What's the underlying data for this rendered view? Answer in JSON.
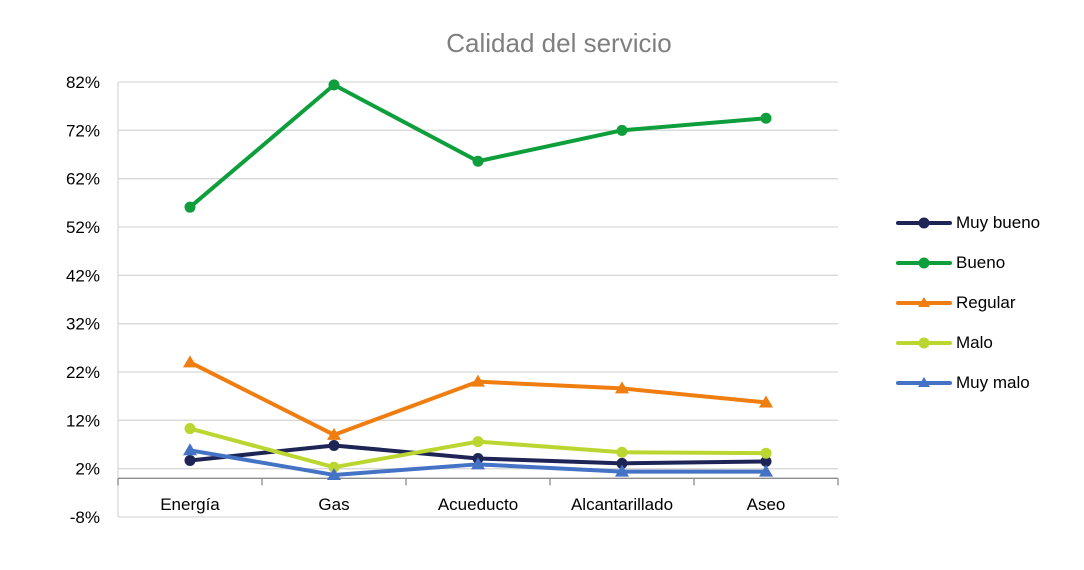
{
  "chart_data": {
    "type": "line",
    "title": "Calidad del servicio",
    "xlabel": "",
    "ylabel": "",
    "categories": [
      "Energía",
      "Gas",
      "Acueducto",
      "Alcantarillado",
      "Aseo"
    ],
    "y_ticks": [
      "82%",
      "72%",
      "62%",
      "52%",
      "42%",
      "32%",
      "22%",
      "12%",
      "2%",
      "-8%"
    ],
    "ylim": [
      -8,
      82
    ],
    "grid": true,
    "legend_position": "right",
    "series": [
      {
        "name": "Muy bueno",
        "color": "#1f2456",
        "marker": "circle",
        "values": [
          3.7,
          6.8,
          4.1,
          3.1,
          3.5
        ]
      },
      {
        "name": "Bueno",
        "color": "#0e9f3c",
        "marker": "circle",
        "values": [
          56.1,
          81.4,
          65.6,
          72.0,
          74.5
        ]
      },
      {
        "name": "Regular",
        "color": "#f07d0f",
        "marker": "triangle",
        "values": [
          24.0,
          9.0,
          20.0,
          18.6,
          15.7
        ]
      },
      {
        "name": "Malo",
        "color": "#bcd631",
        "marker": "circle",
        "values": [
          10.3,
          2.3,
          7.6,
          5.4,
          5.2
        ]
      },
      {
        "name": "Muy malo",
        "color": "#4472c4",
        "marker": "triangle",
        "values": [
          5.8,
          0.7,
          2.9,
          1.4,
          1.4
        ]
      }
    ]
  }
}
